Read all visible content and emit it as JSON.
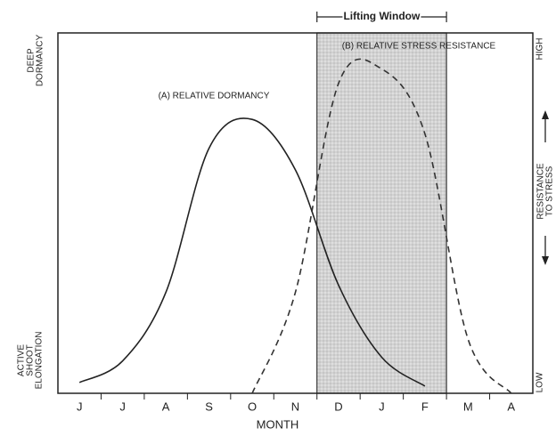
{
  "chart_data": {
    "type": "line",
    "categories": [
      "J",
      "J",
      "A",
      "S",
      "O",
      "N",
      "D",
      "J",
      "F",
      "M",
      "A"
    ],
    "x_label": "MONTH",
    "y_label_top": [
      "DEEP",
      "DORMANCY"
    ],
    "y_label_bottom": [
      "ACTIVE",
      "SHOOT",
      "ELONGATION"
    ],
    "y2_label_top": "HIGH",
    "y2_label_bottom": "LOW",
    "y2_label": [
      "RESISTANCE",
      "TO STRESS"
    ],
    "ylim": [
      0,
      100
    ],
    "lifting_window": {
      "label": "Lifting Window",
      "span": [
        6,
        8
      ],
      "color": "#cfcfcf"
    },
    "series": [
      {
        "name": "(A) RELATIVE DORMANCY",
        "color": "#222222",
        "dashed": false,
        "values": [
          3,
          9,
          28,
          68,
          76,
          62,
          30,
          10,
          2,
          null,
          null
        ]
      },
      {
        "name": "(B) RELATIVE STRESS RESISTANCE",
        "color": "#333333",
        "dashed": true,
        "values": [
          null,
          null,
          null,
          null,
          0,
          28,
          86,
          90,
          72,
          15,
          0
        ]
      }
    ]
  }
}
